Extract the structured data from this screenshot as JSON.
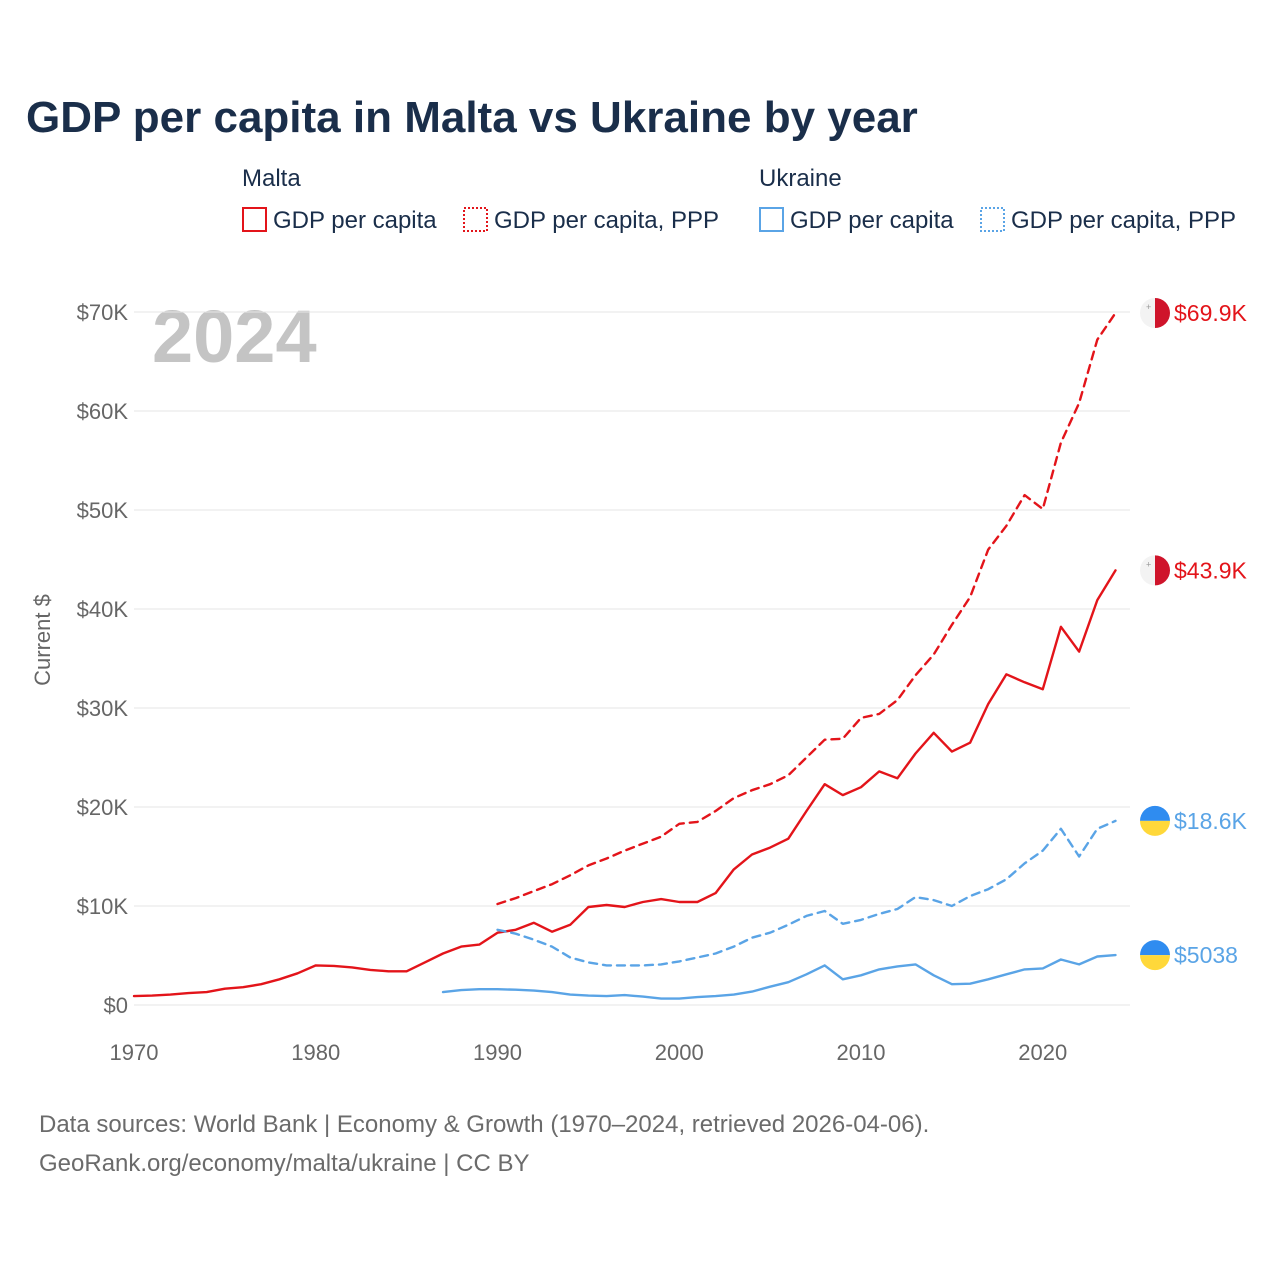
{
  "colors": {
    "malta": "#e3141a",
    "ukraine": "#5aa4e6",
    "title": "#1a2e4a",
    "axis_text": "#666666",
    "watermark": "#c4c4c4"
  },
  "legend": {
    "groups": [
      {
        "country": "Malta",
        "color": "#e3141a",
        "items": [
          {
            "label": "GDP per capita",
            "style": "solid"
          },
          {
            "label": "GDP per capita, PPP",
            "style": "dashed"
          }
        ]
      },
      {
        "country": "Ukraine",
        "color": "#5aa4e6",
        "items": [
          {
            "label": "GDP per capita",
            "style": "solid"
          },
          {
            "label": "GDP per capita, PPP",
            "style": "dashed"
          }
        ]
      }
    ]
  },
  "footer": {
    "line1": "Data sources: World Bank | Economy & Growth (1970–2024, retrieved 2026-04-06).",
    "line2": "GeoRank.org/economy/malta/ukraine | CC BY"
  },
  "chart_data": {
    "type": "line",
    "title": "GDP per capita in Malta vs Ukraine by year",
    "year_label": "2024",
    "xlabel": "",
    "ylabel": "Current $",
    "xlim": [
      1970,
      2024.8
    ],
    "ylim": [
      0,
      70000
    ],
    "grid": true,
    "x_ticks": [
      1970,
      1980,
      1990,
      2000,
      2010,
      2020
    ],
    "y_ticks": [
      0,
      10000,
      20000,
      30000,
      40000,
      50000,
      60000,
      70000
    ],
    "y_tick_labels": [
      "$0",
      "$10K",
      "$20K",
      "$30K",
      "$40K",
      "$50K",
      "$60K",
      "$70K"
    ],
    "series": [
      {
        "name": "Malta GDP per capita",
        "country": "malta",
        "style": "solid",
        "color": "#e3141a",
        "end_label": "$43.9K",
        "x": [
          1970,
          1971,
          1972,
          1973,
          1974,
          1975,
          1976,
          1977,
          1978,
          1979,
          1980,
          1981,
          1982,
          1983,
          1984,
          1985,
          1986,
          1987,
          1988,
          1989,
          1990,
          1991,
          1992,
          1993,
          1994,
          1995,
          1996,
          1997,
          1998,
          1999,
          2000,
          2001,
          2002,
          2003,
          2004,
          2005,
          2006,
          2007,
          2008,
          2009,
          2010,
          2011,
          2012,
          2013,
          2014,
          2015,
          2016,
          2017,
          2018,
          2019,
          2020,
          2021,
          2022,
          2023,
          2024
        ],
        "y": [
          900,
          950,
          1050,
          1200,
          1300,
          1650,
          1800,
          2100,
          2600,
          3200,
          4000,
          3950,
          3800,
          3550,
          3400,
          3400,
          4300,
          5200,
          5900,
          6100,
          7300,
          7600,
          8300,
          7400,
          8100,
          9900,
          10100,
          9900,
          10400,
          10700,
          10400,
          10400,
          11300,
          13700,
          15200,
          15900,
          16800,
          19600,
          22300,
          21200,
          22000,
          23600,
          22900,
          25400,
          27500,
          25600,
          26500,
          30400,
          33400,
          32600,
          31900,
          38200,
          35700,
          40900,
          43900
        ]
      },
      {
        "name": "Malta GDP per capita, PPP",
        "country": "malta",
        "style": "dashed",
        "color": "#e3141a",
        "end_label": "$69.9K",
        "x": [
          1990,
          1991,
          1992,
          1993,
          1994,
          1995,
          1996,
          1997,
          1998,
          1999,
          2000,
          2001,
          2002,
          2003,
          2004,
          2005,
          2006,
          2007,
          2008,
          2009,
          2010,
          2011,
          2012,
          2013,
          2014,
          2015,
          2016,
          2017,
          2018,
          2019,
          2020,
          2021,
          2022,
          2023,
          2024
        ],
        "y": [
          10200,
          10800,
          11500,
          12200,
          13100,
          14100,
          14800,
          15600,
          16300,
          17000,
          18300,
          18500,
          19600,
          20900,
          21700,
          22300,
          23200,
          25000,
          26800,
          26900,
          29000,
          29400,
          30800,
          33300,
          35400,
          38400,
          41200,
          46000,
          48400,
          51500,
          50100,
          56800,
          60800,
          67200,
          69900
        ]
      },
      {
        "name": "Ukraine GDP per capita",
        "country": "ukraine",
        "style": "solid",
        "color": "#5aa4e6",
        "end_label": "$5038",
        "x": [
          1987,
          1988,
          1989,
          1990,
          1991,
          1992,
          1993,
          1994,
          1995,
          1996,
          1997,
          1998,
          1999,
          2000,
          2001,
          2002,
          2003,
          2004,
          2005,
          2006,
          2007,
          2008,
          2009,
          2010,
          2011,
          2012,
          2013,
          2014,
          2015,
          2016,
          2017,
          2018,
          2019,
          2020,
          2021,
          2022,
          2023,
          2024
        ],
        "y": [
          1300,
          1500,
          1600,
          1600,
          1550,
          1450,
          1300,
          1050,
          950,
          900,
          1000,
          850,
          650,
          650,
          800,
          900,
          1050,
          1350,
          1850,
          2300,
          3100,
          4000,
          2600,
          3000,
          3600,
          3900,
          4100,
          3000,
          2100,
          2150,
          2600,
          3100,
          3600,
          3700,
          4600,
          4100,
          4900,
          5038
        ]
      },
      {
        "name": "Ukraine GDP per capita, PPP",
        "country": "ukraine",
        "style": "dashed",
        "color": "#5aa4e6",
        "end_label": "$18.6K",
        "x": [
          1990,
          1991,
          1992,
          1993,
          1994,
          1995,
          1996,
          1997,
          1998,
          1999,
          2000,
          2001,
          2002,
          2003,
          2004,
          2005,
          2006,
          2007,
          2008,
          2009,
          2010,
          2011,
          2012,
          2013,
          2014,
          2015,
          2016,
          2017,
          2018,
          2019,
          2020,
          2021,
          2022,
          2023,
          2024
        ],
        "y": [
          7600,
          7200,
          6600,
          5900,
          4800,
          4300,
          4000,
          4000,
          4000,
          4100,
          4400,
          4800,
          5200,
          5900,
          6800,
          7300,
          8100,
          9000,
          9500,
          8200,
          8600,
          9200,
          9700,
          10900,
          10600,
          10000,
          11000,
          11700,
          12700,
          14300,
          15600,
          17800,
          15000,
          17800,
          18600
        ]
      }
    ]
  }
}
